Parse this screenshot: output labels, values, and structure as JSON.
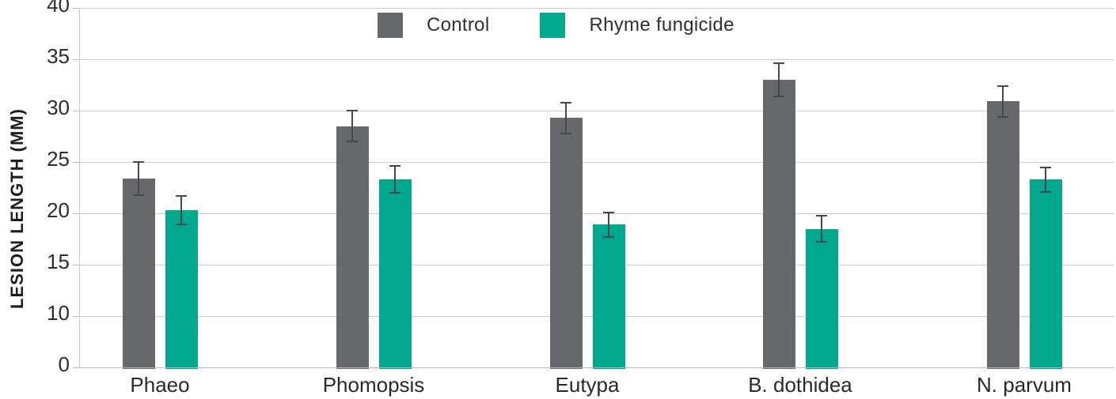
{
  "chart_data": {
    "type": "bar",
    "title": "",
    "xlabel": "",
    "ylabel": "LESION LENGTH (MM)",
    "categories": [
      "Phaeo",
      "Phomopsis",
      "Eutypa",
      "B. dothidea",
      "N. parvum"
    ],
    "series": [
      {
        "name": "Control",
        "color": "#67686c",
        "values": [
          23.4,
          28.5,
          29.3,
          33.0,
          30.9
        ],
        "errors": [
          1.6,
          1.5,
          1.5,
          1.6,
          1.5
        ]
      },
      {
        "name": "Rhyme fungicide",
        "color": "#00a88e",
        "values": [
          20.3,
          23.3,
          18.9,
          18.5,
          23.3
        ],
        "errors": [
          1.4,
          1.3,
          1.2,
          1.3,
          1.2
        ]
      }
    ],
    "yticks": [
      40,
      35,
      30,
      25,
      20,
      15,
      10,
      0
    ],
    "ylim": [
      0,
      40
    ],
    "grid": "horizontal",
    "legend_position": "top-center",
    "error_bars": true,
    "axis_note": "tick rows equally spaced; bottom interval spans 0-10"
  },
  "colors": {
    "control": "#67686c",
    "fungicide": "#00a88e",
    "gridline": "#cccccc",
    "error_bar": "#48484a",
    "text": "#2d2d2f"
  }
}
